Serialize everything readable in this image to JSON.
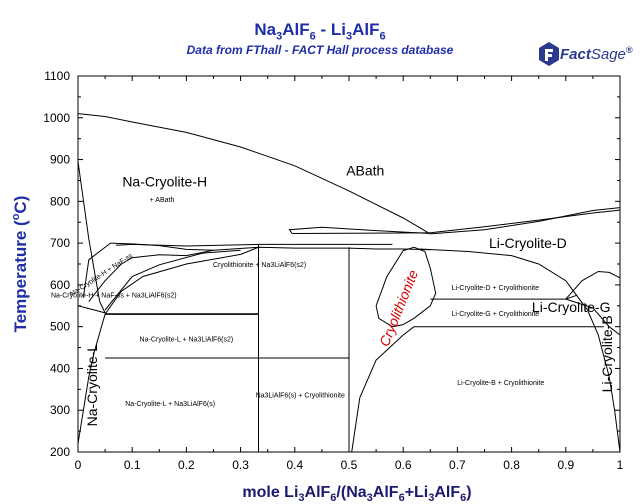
{
  "header": {
    "title_parts": [
      "Na",
      "3",
      "AlF",
      "6",
      " - Li",
      "3",
      "AlF",
      "6"
    ],
    "subtitle": "Data from FThall - FACT Hall process database",
    "logo_label": "Fact",
    "logo_label_2": "Sage",
    "logo_mark": "®"
  },
  "chart_data": {
    "type": "line",
    "title": "Na3AlF6 - Li3AlF6",
    "subtitle": "Data from FThall - FACT Hall process database",
    "xlabel": "mole Li3AlF6/(Na3AlF6+Li3AlF6)",
    "ylabel": "Temperature (°C)",
    "xlim": [
      0,
      1
    ],
    "ylim": [
      200,
      1100
    ],
    "x_ticks": [
      "0",
      "0.1",
      "0.2",
      "0.3",
      "0.4",
      "0.5",
      "0.6",
      "0.7",
      "0.8",
      "0.9",
      "1"
    ],
    "y_ticks": [
      "200",
      "300",
      "400",
      "500",
      "600",
      "700",
      "800",
      "900",
      "1000",
      "1100"
    ],
    "curves": [
      {
        "points": [
          [
            0,
            1010
          ],
          [
            0.05,
            1003
          ],
          [
            0.1,
            990
          ],
          [
            0.2,
            965
          ],
          [
            0.3,
            930
          ],
          [
            0.4,
            885
          ],
          [
            0.5,
            825
          ],
          [
            0.6,
            760
          ],
          [
            0.65,
            722
          ]
        ]
      },
      {
        "points": [
          [
            0.65,
            722
          ],
          [
            0.75,
            732
          ],
          [
            0.85,
            752
          ],
          [
            0.95,
            778
          ],
          [
            1,
            785
          ]
        ]
      },
      {
        "points": [
          [
            0.395,
            723
          ],
          [
            0.55,
            724
          ],
          [
            0.65,
            725
          ],
          [
            0.75,
            739
          ],
          [
            0.85,
            755
          ],
          [
            0.95,
            772
          ],
          [
            1,
            779
          ]
        ]
      },
      {
        "points": [
          [
            0.395,
            723
          ],
          [
            0.39,
            732
          ],
          [
            0.45,
            738
          ],
          [
            0.55,
            730
          ],
          [
            0.65,
            723
          ]
        ]
      },
      {
        "points": [
          [
            0.0,
            895
          ],
          [
            0.02,
            710
          ],
          [
            0.04,
            560
          ],
          [
            0.05,
            533
          ]
        ]
      },
      {
        "points": [
          [
            0.0,
            550
          ],
          [
            0.015,
            545
          ],
          [
            0.03,
            540
          ],
          [
            0.05,
            533
          ]
        ]
      },
      {
        "points": [
          [
            0.02,
            560
          ],
          [
            0.05,
            610
          ],
          [
            0.08,
            650
          ],
          [
            0.1,
            665
          ],
          [
            0.15,
            672
          ],
          [
            0.2,
            670
          ],
          [
            0.25,
            683
          ]
        ]
      },
      {
        "points": [
          [
            0.06,
            700
          ],
          [
            0.02,
            660
          ],
          [
            0.01,
            570
          ]
        ]
      },
      {
        "points": [
          [
            0.06,
            700
          ],
          [
            0.1,
            698
          ],
          [
            0.15,
            694
          ],
          [
            0.2,
            685
          ],
          [
            0.25,
            683
          ]
        ]
      },
      {
        "points": [
          [
            0.05,
            540
          ],
          [
            0.1,
            620
          ],
          [
            0.15,
            648
          ],
          [
            0.23,
            676
          ],
          [
            0.3,
            683
          ]
        ]
      },
      {
        "points": [
          [
            0.25,
            683
          ],
          [
            0.333,
            690
          ],
          [
            0.4,
            688
          ],
          [
            0.5,
            688
          ],
          [
            0.55,
            686
          ],
          [
            0.6,
            686
          ],
          [
            0.65,
            684
          ]
        ]
      },
      {
        "points": [
          [
            0.333,
            697
          ],
          [
            0.45,
            697
          ],
          [
            0.55,
            697
          ],
          [
            0.58,
            697
          ]
        ]
      },
      {
        "points": [
          [
            0.07,
            695
          ],
          [
            0.1,
            697
          ],
          [
            0.2,
            693
          ],
          [
            0.333,
            697
          ]
        ]
      },
      {
        "points": [
          [
            0.0,
            220
          ],
          [
            0.01,
            300
          ],
          [
            0.02,
            380
          ],
          [
            0.03,
            440
          ],
          [
            0.05,
            530
          ],
          [
            0.08,
            585
          ],
          [
            0.12,
            620
          ],
          [
            0.2,
            650
          ],
          [
            0.3,
            673
          ],
          [
            0.333,
            690
          ]
        ]
      },
      {
        "points": [
          [
            0.05,
            530
          ],
          [
            0.333,
            530
          ]
        ]
      },
      {
        "points": [
          [
            0.05,
            425
          ],
          [
            0.5,
            425
          ]
        ]
      },
      {
        "points": [
          [
            0.333,
            200
          ],
          [
            0.333,
            697
          ]
        ]
      },
      {
        "points": [
          [
            0.5,
            200
          ],
          [
            0.5,
            690
          ]
        ]
      },
      {
        "points": [
          [
            0.63,
            686
          ],
          [
            0.72,
            680
          ],
          [
            0.8,
            670
          ],
          [
            0.85,
            650
          ],
          [
            0.9,
            610
          ],
          [
            0.92,
            575
          ],
          [
            0.94,
            540
          ],
          [
            0.96,
            480
          ],
          [
            0.98,
            380
          ],
          [
            0.99,
            300
          ],
          [
            1,
            200
          ]
        ]
      },
      {
        "points": [
          [
            0.505,
            200
          ],
          [
            0.52,
            330
          ],
          [
            0.55,
            420
          ],
          [
            0.6,
            480
          ],
          [
            0.62,
            500
          ]
        ]
      },
      {
        "points": [
          [
            0.62,
            500
          ],
          [
            0.92,
            500
          ],
          [
            0.97,
            500
          ]
        ]
      },
      {
        "points": [
          [
            0.65,
            566
          ],
          [
            0.9,
            566
          ]
        ]
      },
      {
        "points": [
          [
            0.9,
            566
          ],
          [
            0.92,
            575
          ]
        ]
      },
      {
        "points": [
          [
            0.9,
            566
          ],
          [
            0.93,
            610
          ],
          [
            0.96,
            632
          ],
          [
            0.98,
            630
          ],
          [
            1,
            617
          ]
        ]
      },
      {
        "points": [
          [
            0.9,
            566
          ],
          [
            0.95,
            545
          ],
          [
            0.98,
            500
          ],
          [
            1,
            480
          ]
        ]
      },
      {
        "points": [
          [
            0.55,
            550
          ],
          [
            0.57,
            620
          ],
          [
            0.6,
            682
          ],
          [
            0.62,
            690
          ],
          [
            0.64,
            680
          ],
          [
            0.65,
            640
          ],
          [
            0.66,
            580
          ],
          [
            0.65,
            550
          ],
          [
            0.62,
            520
          ],
          [
            0.6,
            505
          ]
        ]
      },
      {
        "points": [
          [
            0.55,
            550
          ],
          [
            0.555,
            520
          ],
          [
            0.58,
            500
          ],
          [
            0.6,
            505
          ]
        ]
      }
    ],
    "annotations": [
      {
        "text": "ABath",
        "x": 0.53,
        "y": 862
      },
      {
        "text": "Na-Cryolite-H",
        "x": 0.16,
        "y": 835
      },
      {
        "text": "+ ABath",
        "x": 0.155,
        "y": 798
      },
      {
        "text": "Li-Cryolite-D",
        "x": 0.83,
        "y": 688
      },
      {
        "text": "Li-Cryolite-G",
        "x": 0.91,
        "y": 535
      },
      {
        "text": "Cryolithionite",
        "x": 0.6,
        "y": 540
      },
      {
        "text": "Cryolithionite + Na3LiAlF6(s2)",
        "x": 0.335,
        "y": 643
      },
      {
        "text": "Na-Cryolite-H + NaF-ss + Na3LiAlF6(s2)",
        "x": 0.066,
        "y": 570
      },
      {
        "text": "Li-Cryolite-D + Cryolithionite",
        "x": 0.77,
        "y": 588
      },
      {
        "text": "Li-Cryolite-G + Cryolithionite",
        "x": 0.77,
        "y": 526
      },
      {
        "text": "Na-Cryolite-L + Na3LiAlF6(s2)",
        "x": 0.2,
        "y": 465
      },
      {
        "text": "Li-Cryolite-B + Cryolithionite",
        "x": 0.78,
        "y": 360
      },
      {
        "text": "Na-Cryolite-L + Na3LiAlF6(s)",
        "x": 0.17,
        "y": 310
      },
      {
        "text": "Na3LiAlF6(s) + Cryolithionite",
        "x": 0.41,
        "y": 330
      },
      {
        "text": "Na-Cryolite-L",
        "x": 0.035,
        "y": 360
      },
      {
        "text": "Li-Cryolite-B",
        "x": 0.985,
        "y": 435
      },
      {
        "text": "Na-Cryolite-H + NaF-ss",
        "x": 0.045,
        "y": 620
      }
    ]
  },
  "labels": {
    "ABath": "ABath",
    "NaH": "Na-Cryolite-H",
    "NaH_ABath": "+ ABath",
    "LiD": "Li-Cryolite-D",
    "LiG": "Li-Cryolite-G",
    "Cryo": "Cryolithionite",
    "CryoNaS2": "Cryolithionite + Na3LiAlF6(s2)",
    "NaHNaFNaS2": "Na-Cryolite-H + NaF-ss + Na3LiAlF6(s2)",
    "LiDCryo": "Li-Cryolite-D + Cryolithionite",
    "LiGCryo": "Li-Cryolite-G + Cryolithionite",
    "NaLNaS2": "Na-Cryolite-L + Na3LiAlF6(s2)",
    "LiBCryo": "Li-Cryolite-B + Cryolithionite",
    "NaLNaS": "Na-Cryolite-L + Na3LiAlF6(s)",
    "NaSCryo": "Na3LiAlF6(s) + Cryolithionite",
    "NaL": "Na-Cryolite-L",
    "LiB": "Li-Cryolite-B",
    "NaHNaF": "Na-Cryolite-H + NaF-ss"
  },
  "axes": {
    "x_label_parts": [
      "mole Li",
      "3",
      "AlF",
      "6",
      "/(Na",
      "3",
      "AlF",
      "6",
      "+Li",
      "3",
      "AlF",
      "6",
      ")"
    ],
    "y_label_parts": [
      "Temperature (",
      "o",
      "C)"
    ]
  },
  "colors": {
    "title": "#1f2ea8",
    "ylabel": "#1f2ea8",
    "cryolithionite": "#d40000",
    "curve": "#000000"
  }
}
